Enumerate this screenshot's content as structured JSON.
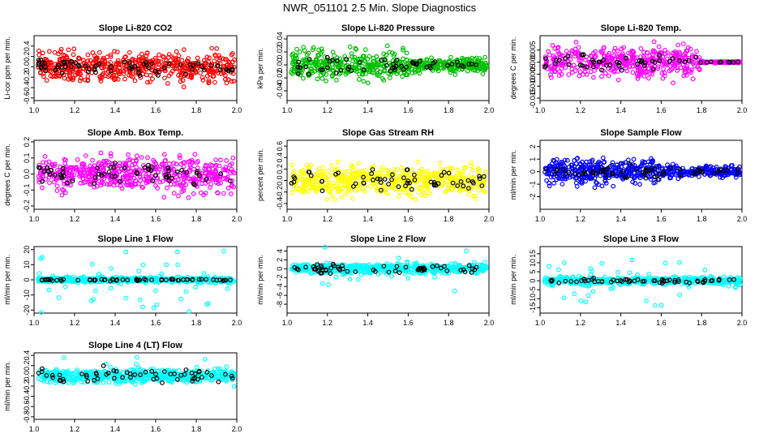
{
  "figure": {
    "title": "NWR_051101  2.5 Min. Slope Diagnostics",
    "x_range": [
      1.0,
      2.0
    ],
    "x_ticks": [
      "1.0",
      "1.2",
      "1.4",
      "1.6",
      "1.8",
      "2.0"
    ],
    "black_color": "#000000"
  },
  "chart_data": [
    {
      "type": "scatter",
      "title": "Slope Li-820 CO2",
      "ylabel": "Li-cor ppm per min.",
      "color": "#ff0000",
      "ylim": [
        -0.65,
        0.6
      ],
      "yticks": [
        -0.6,
        -0.4,
        -0.2,
        0.0,
        0.2,
        0.4
      ],
      "ytick_labels": [
        "-0.6",
        "-0.4",
        "-0.2",
        "0.0",
        "0.2",
        "0.4"
      ],
      "noise": {
        "colored_spread": 0.2,
        "black_spread": 0.12,
        "calm_after": null,
        "n_colored": 520,
        "n_black": 70,
        "outlier_rate": 0.0
      },
      "seed": 11
    },
    {
      "type": "scatter",
      "title": "Slope Li-820 Pressure",
      "ylabel": "kPa per min.",
      "color": "#00c000",
      "ylim": [
        -0.055,
        0.045
      ],
      "yticks": [
        -0.04,
        -0.02,
        0.0,
        0.02,
        0.04
      ],
      "ytick_labels": [
        "-0.04",
        "-0.02",
        "0.00",
        "0.02",
        "0.04"
      ],
      "noise": {
        "colored_spread": 0.016,
        "black_spread": 0.01,
        "calm_after": 1.6,
        "calm_factor": 0.45,
        "n_colored": 560,
        "n_black": 55,
        "outlier_rate": 0.0
      },
      "seed": 23
    },
    {
      "type": "scatter",
      "title": "Slope Li-820 Temp.",
      "ylabel": "degrees C per min.",
      "color": "#ff00ff",
      "ylim": [
        -0.016,
        0.011
      ],
      "yticks": [
        -0.015,
        -0.01,
        -0.005,
        0.0,
        0.005
      ],
      "ytick_labels": [
        "-0.015",
        "-0.010",
        "-0.005",
        "0.000",
        "0.005"
      ],
      "noise": {
        "colored_spread": 0.0045,
        "black_spread": 0.0025,
        "calm_after": 1.79,
        "calm_factor": 0.05,
        "n_colored": 520,
        "n_black": 55,
        "outlier_rate": 0.0
      },
      "seed": 37
    },
    {
      "type": "scatter",
      "title": "Slope Amb. Box Temp.",
      "ylabel": "degrees C per min.",
      "color": "#ff00ff",
      "ylim": [
        -0.22,
        0.21
      ],
      "yticks": [
        -0.2,
        -0.1,
        0.0,
        0.1,
        0.2
      ],
      "ytick_labels": [
        "-0.2",
        "-0.1",
        "0.0",
        "0.1",
        "0.2"
      ],
      "noise": {
        "colored_spread": 0.075,
        "black_spread": 0.05,
        "calm_after": null,
        "n_colored": 520,
        "n_black": 60,
        "outlier_rate": 0.0
      },
      "seed": 41
    },
    {
      "type": "scatter",
      "title": "Slope Gas Stream RH",
      "ylabel": "percent per min.",
      "color": "#ffff00",
      "ylim": [
        -0.5,
        0.7
      ],
      "yticks": [
        -0.4,
        -0.2,
        0.0,
        0.2,
        0.4,
        0.6
      ],
      "ytick_labels": [
        "-0.4",
        "-0.2",
        "0.0",
        "0.2",
        "0.4",
        "0.6"
      ],
      "noise": {
        "colored_spread": 0.18,
        "black_spread": 0.13,
        "calm_after": null,
        "n_colored": 560,
        "n_black": 60,
        "outlier_rate": 0.0
      },
      "seed": 53
    },
    {
      "type": "scatter",
      "title": "Slope Sample Flow",
      "ylabel": "ml/min per min.",
      "color": "#0000ff",
      "ylim": [
        -3.0,
        2.5
      ],
      "yticks": [
        -2,
        -1,
        0,
        1,
        2
      ],
      "ytick_labels": [
        "-2",
        "-1",
        "0",
        "1",
        "2"
      ],
      "noise": {
        "colored_spread": 0.7,
        "black_spread": 0.45,
        "calm_after": 1.6,
        "calm_factor": 0.45,
        "n_colored": 560,
        "n_black": 60,
        "outlier_rate": 0.0
      },
      "seed": 67
    },
    {
      "type": "scatter",
      "title": "Slope Line 1 Flow",
      "ylabel": "ml/min per min.",
      "color": "#00ffff",
      "ylim": [
        -22,
        22
      ],
      "yticks": [
        -20,
        -10,
        0,
        10,
        20
      ],
      "ytick_labels": [
        "-20",
        "-10",
        "0",
        "10",
        "20"
      ],
      "noise": {
        "colored_spread": 1.2,
        "black_spread": 0.4,
        "calm_after": null,
        "n_colored": 520,
        "n_black": 60,
        "outlier_rate": 0.08,
        "outlier_spread": 9
      },
      "seed": 71
    },
    {
      "type": "scatter",
      "title": "Slope Line 2 Flow",
      "ylabel": "ml/min per min.",
      "color": "#00ffff",
      "ylim": [
        -10,
        5
      ],
      "yticks": [
        -8,
        -6,
        -4,
        -2,
        0,
        2,
        4
      ],
      "ytick_labels": [
        "-8",
        "-6",
        "-4",
        "-2",
        "0",
        "2",
        "4"
      ],
      "noise": {
        "colored_spread": 0.8,
        "black_spread": 0.7,
        "calm_after": null,
        "n_colored": 560,
        "n_black": 60,
        "outlier_rate": 0.02,
        "outlier_spread": 3
      },
      "seed": 83
    },
    {
      "type": "scatter",
      "title": "Slope Line 3 Flow",
      "ylabel": "ml/min per min.",
      "color": "#00ffff",
      "ylim": [
        -18,
        19
      ],
      "yticks": [
        -15,
        -10,
        -5,
        0,
        5,
        10,
        15
      ],
      "ytick_labels": [
        "-15",
        "-10",
        "-5",
        "0",
        "5",
        "10",
        "15"
      ],
      "noise": {
        "colored_spread": 1.4,
        "black_spread": 0.9,
        "calm_after": null,
        "n_colored": 540,
        "n_black": 60,
        "outlier_rate": 0.08,
        "outlier_spread": 6
      },
      "seed": 97
    },
    {
      "type": "scatter",
      "title": "Slope Line 4 (LT) Flow",
      "ylabel": "ml/min per min.",
      "color": "#00ffff",
      "ylim": [
        -0.85,
        0.45
      ],
      "yticks": [
        -0.8,
        -0.6,
        -0.4,
        -0.2,
        0.0,
        0.2,
        0.4
      ],
      "ytick_labels": [
        "-0.8",
        "-0.6",
        "-0.4",
        "-0.2",
        "0.0",
        "0.2",
        "0.4"
      ],
      "noise": {
        "colored_spread": 0.09,
        "black_spread": 0.1,
        "calm_after": null,
        "n_colored": 560,
        "n_black": 60,
        "outlier_rate": 0.02,
        "outlier_spread": 0.3
      },
      "seed": 103
    }
  ]
}
